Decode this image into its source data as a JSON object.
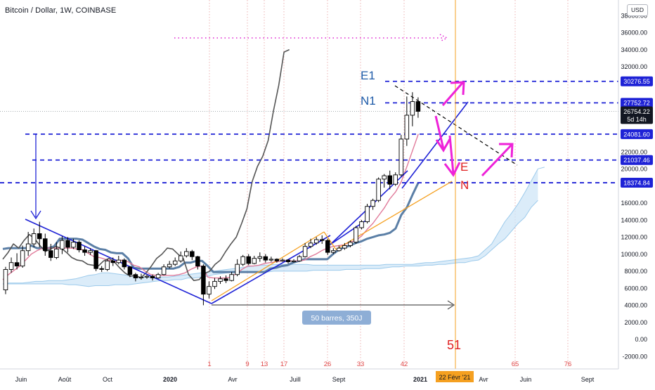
{
  "header": {
    "title": "Bitcoin / Dollar, 1W, COINBASE",
    "currency": "USD"
  },
  "chart_data": {
    "type": "line",
    "x_ticks": [
      "Juin",
      "Août",
      "Oct",
      "2020",
      "Avr",
      "Juill",
      "Sept",
      "2021",
      "Avr",
      "Juin",
      "Sept"
    ],
    "y_ticks": [
      "38000.00",
      "36000.00",
      "34000.00",
      "32000.00",
      "30000.00",
      "22000.00",
      "20000.00",
      "16000.00",
      "14000.00",
      "12000.00",
      "10000.00",
      "8000.00",
      "6000.00",
      "4000.00",
      "2000.00",
      "0.00",
      "-2000.00"
    ],
    "ylim": [
      -2800,
      39400
    ],
    "price_labels": [
      {
        "text": "30276.55",
        "value": 30276.55,
        "color": "#1e22d6"
      },
      {
        "text": "27752.72",
        "value": 27752.72,
        "color": "#1e22d6"
      },
      {
        "text": "26754.22",
        "value": 26754.22,
        "color": "#131722"
      },
      {
        "text": "5d 14h",
        "value": 25850,
        "color": "#131722"
      },
      {
        "text": "24081.60",
        "value": 24081.6,
        "color": "#1e22d6"
      },
      {
        "text": "21037.46",
        "value": 21037.46,
        "color": "#1e22d6"
      },
      {
        "text": "18374.84",
        "value": 18374.84,
        "color": "#1e22d6"
      }
    ],
    "time_counts": [
      "1",
      "9",
      "13",
      "17",
      "26",
      "33",
      "42",
      "65",
      "76"
    ],
    "cycle_number": "51",
    "current_date_label": "22 Févr '21",
    "annotations": {
      "E1": "E1",
      "N1": "N1",
      "E": "E",
      "N": "N",
      "range_box": "50 barres, 350J"
    },
    "candles": [
      [
        5800,
        8200,
        5300,
        8500
      ],
      [
        8200,
        9000,
        7800,
        9600
      ],
      [
        9000,
        8600,
        8200,
        10100
      ],
      [
        8600,
        10400,
        8400,
        11000
      ],
      [
        10400,
        11200,
        9800,
        12600
      ],
      [
        11200,
        12400,
        10800,
        13000
      ],
      [
        12400,
        11800,
        10800,
        13800
      ],
      [
        11800,
        10400,
        9800,
        12400
      ],
      [
        10400,
        9600,
        9200,
        11200
      ],
      [
        9600,
        10600,
        9400,
        11400
      ],
      [
        10600,
        11600,
        10000,
        12100
      ],
      [
        11600,
        10800,
        10200,
        12000
      ],
      [
        10800,
        11400,
        10600,
        11800
      ],
      [
        11400,
        10500,
        10200,
        11600
      ],
      [
        10500,
        10200,
        9800,
        10900
      ],
      [
        10200,
        10400,
        9900,
        10700
      ],
      [
        10400,
        8300,
        8000,
        10500
      ],
      [
        8300,
        8200,
        7900,
        8600
      ],
      [
        8200,
        9200,
        8000,
        9400
      ],
      [
        9200,
        9000,
        8600,
        9600
      ],
      [
        9000,
        9300,
        8800,
        9800
      ],
      [
        9300,
        8500,
        8200,
        9500
      ],
      [
        8500,
        7600,
        7300,
        8600
      ],
      [
        7600,
        7200,
        6800,
        7800
      ],
      [
        7200,
        7300,
        7000,
        7700
      ],
      [
        7300,
        7400,
        7100,
        7600
      ],
      [
        7400,
        7200,
        6900,
        7600
      ],
      [
        7200,
        7600,
        7100,
        7800
      ],
      [
        7600,
        8500,
        7500,
        8800
      ],
      [
        8500,
        8800,
        8300,
        9200
      ],
      [
        8800,
        9200,
        8600,
        9600
      ],
      [
        9200,
        9800,
        9000,
        10300
      ],
      [
        9800,
        10300,
        9600,
        10700
      ],
      [
        10300,
        9700,
        9300,
        10500
      ],
      [
        9700,
        8600,
        8200,
        9800
      ],
      [
        8600,
        5300,
        4000,
        8800
      ],
      [
        5300,
        6200,
        4800,
        6800
      ],
      [
        6200,
        6800,
        5900,
        7200
      ],
      [
        6800,
        7100,
        6500,
        7400
      ],
      [
        7100,
        6900,
        6600,
        7500
      ],
      [
        6900,
        7600,
        6800,
        7900
      ],
      [
        7600,
        8800,
        7400,
        9400
      ],
      [
        8800,
        9700,
        8600,
        9900
      ],
      [
        9700,
        8900,
        8700,
        10000
      ],
      [
        8900,
        9500,
        8800,
        9800
      ],
      [
        9500,
        9700,
        9100,
        10200
      ],
      [
        9700,
        9300,
        9000,
        10000
      ],
      [
        9300,
        9400,
        9100,
        9700
      ],
      [
        9400,
        9200,
        9000,
        9500
      ],
      [
        9200,
        9300,
        9100,
        9500
      ],
      [
        9300,
        9100,
        8900,
        9400
      ],
      [
        9100,
        9200,
        9000,
        9400
      ],
      [
        9200,
        9700,
        9100,
        9900
      ],
      [
        9700,
        10900,
        9600,
        11300
      ],
      [
        10900,
        11300,
        10700,
        11800
      ],
      [
        11300,
        11700,
        11100,
        12000
      ],
      [
        11700,
        11600,
        11200,
        12200
      ],
      [
        11600,
        10200,
        9900,
        11800
      ],
      [
        10200,
        10400,
        10000,
        10700
      ],
      [
        10400,
        10700,
        10300,
        11000
      ],
      [
        10700,
        11000,
        10500,
        11300
      ],
      [
        11000,
        11400,
        10800,
        11600
      ],
      [
        11400,
        13100,
        11200,
        13300
      ],
      [
        13100,
        13800,
        12900,
        14000
      ],
      [
        13800,
        15600,
        13600,
        15900
      ],
      [
        15600,
        16300,
        15200,
        16500
      ],
      [
        16300,
        18800,
        16100,
        19000
      ],
      [
        18800,
        19200,
        17800,
        19400
      ],
      [
        19200,
        18200,
        17600,
        19800
      ],
      [
        18200,
        19300,
        18000,
        19600
      ],
      [
        19300,
        23500,
        19100,
        24000
      ],
      [
        23500,
        26300,
        22700,
        28500
      ],
      [
        26300,
        27900,
        25000,
        29000
      ],
      [
        27900,
        26754,
        26000,
        28400
      ]
    ],
    "series": [
      {
        "name": "",
        "values": [
          10600,
          10700,
          10700,
          10700,
          10700,
          11000,
          10700,
          10700,
          10700,
          10900,
          11800,
          11800,
          11800,
          11800,
          11700,
          11300,
          10900,
          10600,
          10500,
          10200,
          10100,
          10100,
          9500,
          8400,
          8300,
          8300,
          8300,
          8300,
          8300,
          8300,
          8300,
          8500,
          9000,
          9000,
          9200,
          9200,
          8600,
          7900,
          7900,
          7900,
          7900,
          7900,
          7900,
          7900,
          7900,
          7900,
          7900,
          8300,
          8400,
          8600,
          8700,
          9000,
          9200,
          9400,
          9400,
          9400,
          9400,
          9400,
          10000,
          10500,
          10800,
          11000,
          11300,
          11500,
          11800,
          12000,
          12200,
          12300,
          12500,
          13000,
          14600,
          15500,
          17000,
          18400
        ]
      },
      {
        "name": "",
        "values": [
          7000,
          7600,
          8100,
          8600,
          9300,
          10000,
          10400,
          10700,
          10700,
          10700,
          10700,
          10700,
          10700,
          10600,
          10500,
          10100,
          9700,
          9600,
          9400,
          9200,
          9100,
          9300,
          9100,
          8700,
          8500,
          8000,
          7600,
          7500,
          7500,
          7500,
          7500,
          7600,
          7800,
          8200,
          8500,
          8600,
          7300,
          7200,
          7200,
          7200,
          7300,
          7700,
          8200,
          8600,
          8600,
          8700,
          8900,
          9000,
          9100,
          9200,
          9200,
          9200,
          9200,
          9300,
          9700,
          10000,
          10400,
          10700,
          10900,
          11000,
          11100,
          11400,
          11600,
          12100,
          12900,
          13600,
          14500,
          15400,
          16500,
          17300,
          18500,
          20300,
          22200,
          24100
        ]
      },
      {
        "name": "",
        "values": [
          9400,
          10200,
          11200,
          10700,
          11600,
          12300,
          11800,
          11000,
          10300,
          10600,
          10900,
          10700,
          10200,
          9600,
          9300,
          9200,
          8800,
          8700,
          8600,
          9200,
          9500,
          9100,
          8400,
          7800,
          7400,
          7500,
          7200,
          7800,
          8600,
          9500,
          10000,
          10700,
          10600,
          10000,
          9500,
          7600,
          6900,
          7000,
          7700,
          8000,
          8800,
          9300,
          10300,
          11200,
          12000,
          13600,
          15300,
          18500,
          20300,
          21500,
          23300,
          26800,
          29800,
          33700,
          34000
        ]
      },
      {
        "name": "",
        "values": [
          6500,
          6500,
          6500,
          6500,
          6500,
          6500,
          6500,
          6500,
          6500,
          6500,
          6400,
          6400,
          6300,
          6200,
          6300,
          6300,
          6300,
          6400,
          6400,
          6400,
          6500,
          6600,
          6700,
          6800,
          6900,
          6900,
          7000,
          7000,
          7200,
          7200,
          7300,
          7400,
          7600,
          7700,
          7800,
          7900,
          7900,
          7900,
          7900,
          7900,
          7900,
          8000,
          8000,
          8000,
          8000,
          8000,
          8000,
          8100,
          8100,
          8100,
          8100,
          8100,
          8200,
          8200,
          8200,
          8300,
          8300,
          8300,
          8400,
          8500,
          8500,
          8600,
          8600,
          8600,
          8700,
          8700,
          8800,
          8800,
          8900,
          9000,
          9000,
          9200,
          9300,
          9800,
          10500,
          11200,
          11800,
          12700,
          13600,
          14300,
          15500,
          16300
        ]
      },
      {
        "name": "",
        "values": [
          6500,
          6600,
          6600,
          6600,
          6700,
          6800,
          6800,
          6900,
          6900,
          6900,
          7000,
          7100,
          7300,
          7500,
          7600,
          7800,
          7800,
          7700,
          7600,
          7500,
          7400,
          7300,
          7300,
          7200,
          7300,
          7300,
          7400,
          7500,
          7600,
          7700,
          7800,
          7900,
          8000,
          8100,
          8200,
          8300,
          8400,
          8500,
          8600,
          8700,
          8700,
          8800,
          8800,
          8800,
          8800,
          8800,
          8800,
          8700,
          8700,
          8700,
          8700,
          8700,
          8700,
          8700,
          8700,
          8700,
          8700,
          8700,
          8800,
          8800,
          8800,
          8800,
          8800,
          8900,
          9000,
          9000,
          9100,
          9200,
          9300,
          9400,
          9500,
          9600,
          9800,
          10500,
          11200,
          12500,
          13800,
          14800,
          15900,
          17200,
          18600,
          20000,
          20200
        ]
      }
    ]
  }
}
